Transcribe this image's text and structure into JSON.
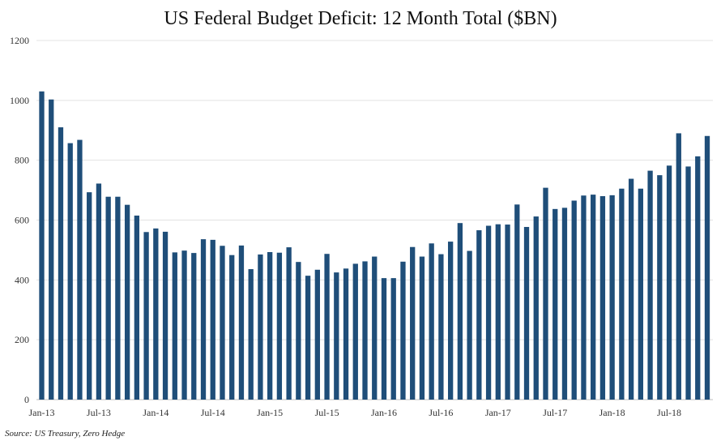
{
  "chart_data": {
    "type": "bar",
    "title": "US Federal Budget Deficit: 12 Month Total ($BN)",
    "xlabel": "",
    "ylabel": "",
    "ylim": [
      0,
      1200
    ],
    "yticks": [
      0,
      200,
      400,
      600,
      800,
      1000,
      1200
    ],
    "xtick_labels": [
      {
        "index": 0,
        "label": "Jan-13"
      },
      {
        "index": 6,
        "label": "Jul-13"
      },
      {
        "index": 12,
        "label": "Jan-14"
      },
      {
        "index": 18,
        "label": "Jul-14"
      },
      {
        "index": 24,
        "label": "Jan-15"
      },
      {
        "index": 30,
        "label": "Jul-15"
      },
      {
        "index": 36,
        "label": "Jan-16"
      },
      {
        "index": 42,
        "label": "Jul-16"
      },
      {
        "index": 48,
        "label": "Jan-17"
      },
      {
        "index": 54,
        "label": "Jul-17"
      },
      {
        "index": 60,
        "label": "Jan-18"
      },
      {
        "index": 66,
        "label": "Jul-18"
      }
    ],
    "grid": true,
    "bar_color": "#1f4e79",
    "series": [
      {
        "name": "12 Month Total Deficit",
        "values": [
          1030,
          1003,
          910,
          857,
          868,
          693,
          722,
          678,
          678,
          651,
          615,
          560,
          572,
          561,
          492,
          498,
          490,
          536,
          534,
          514,
          483,
          515,
          436,
          485,
          493,
          491,
          509,
          460,
          414,
          434,
          487,
          425,
          438,
          454,
          462,
          478,
          406,
          406,
          461,
          510,
          478,
          522,
          486,
          528,
          590,
          497,
          566,
          581,
          586,
          585,
          652,
          577,
          612,
          708,
          637,
          641,
          665,
          682,
          685,
          680,
          683,
          705,
          738,
          705,
          765,
          750,
          782,
          890,
          779,
          813,
          881
        ]
      }
    ]
  },
  "source": "Source: US Treasury, Zero Hedge"
}
